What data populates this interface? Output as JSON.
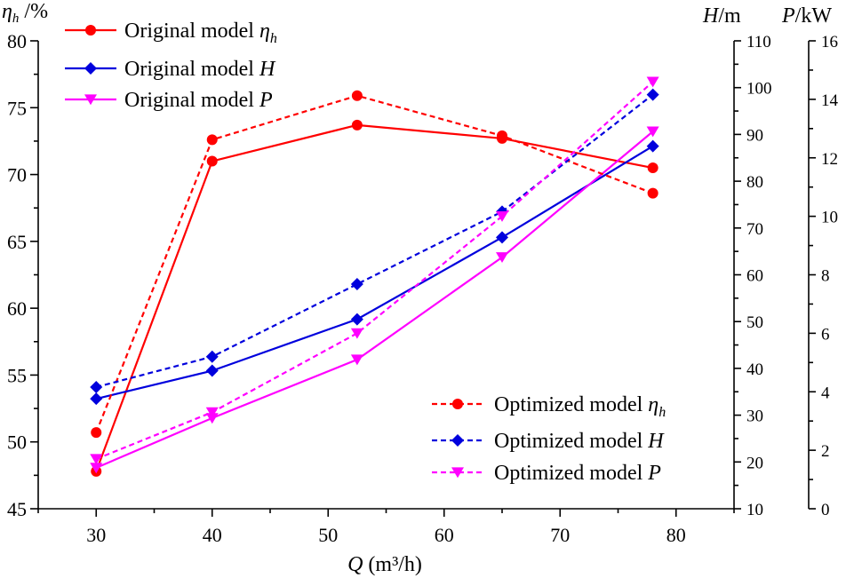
{
  "chart_data": {
    "type": "line",
    "x": [
      30,
      40,
      52.5,
      65,
      78
    ],
    "xlim": [
      25,
      85
    ],
    "x_ticks": [
      30,
      40,
      50,
      60,
      70,
      80
    ],
    "xlabel_symbol": "Q",
    "xlabel_unit": " (m³/h)",
    "left_axis": {
      "label_symbol": "η",
      "label_sub": "h",
      "label_unit": " /%",
      "ylim": [
        45,
        80
      ],
      "ticks": [
        45,
        50,
        55,
        60,
        65,
        70,
        75,
        80
      ]
    },
    "mid_axis": {
      "label_symbol": "H",
      "label_unit": "/m",
      "ylim": [
        10,
        110
      ],
      "ticks": [
        10,
        20,
        30,
        40,
        50,
        60,
        70,
        80,
        90,
        100,
        110
      ]
    },
    "right_axis": {
      "label_symbol": "P",
      "label_unit": "/kW",
      "ylim": [
        0,
        16
      ],
      "ticks": [
        0,
        2,
        4,
        6,
        8,
        10,
        12,
        14,
        16
      ]
    },
    "series": [
      {
        "name": "Original model ηh",
        "axis": "left",
        "color": "#ff0000",
        "dash": "solid",
        "marker": "circle",
        "values": [
          47.8,
          71.0,
          73.7,
          72.7,
          70.5
        ]
      },
      {
        "name": "Original model H",
        "axis": "mid",
        "color": "#0000dd",
        "dash": "solid",
        "marker": "diamond",
        "values": [
          33.5,
          39.5,
          50.5,
          68,
          87.5
        ]
      },
      {
        "name": "Original model P",
        "axis": "right",
        "color": "#ff00ff",
        "dash": "solid",
        "marker": "triangle-down",
        "values": [
          1.4,
          3.1,
          5.1,
          8.6,
          12.9
        ]
      },
      {
        "name": "Optimized model ηh",
        "axis": "left",
        "color": "#ff0000",
        "dash": "dashed",
        "marker": "circle",
        "values": [
          50.7,
          72.6,
          75.9,
          72.9,
          68.6
        ]
      },
      {
        "name": "Optimized model H",
        "axis": "mid",
        "color": "#0000dd",
        "dash": "dashed",
        "marker": "diamond",
        "values": [
          36,
          42.5,
          58,
          73.5,
          98.5
        ]
      },
      {
        "name": "Optimized model P",
        "axis": "right",
        "color": "#ff00ff",
        "dash": "dashed",
        "marker": "triangle-down",
        "values": [
          1.7,
          3.3,
          6.0,
          10.0,
          14.6
        ]
      }
    ],
    "legend_top": {
      "position": "top-left",
      "entries": [
        {
          "prefix": "Original model",
          "symbol": "η",
          "sub": "h"
        },
        {
          "prefix": "Original model",
          "symbol": "H",
          "sub": ""
        },
        {
          "prefix": "Original model",
          "symbol": "P",
          "sub": ""
        }
      ]
    },
    "legend_bottom": {
      "position": "bottom-right",
      "entries": [
        {
          "prefix": "Optimized model",
          "symbol": "η",
          "sub": "h"
        },
        {
          "prefix": "Optimized model",
          "symbol": "H",
          "sub": ""
        },
        {
          "prefix": "Optimized model",
          "symbol": "P",
          "sub": ""
        }
      ]
    }
  }
}
